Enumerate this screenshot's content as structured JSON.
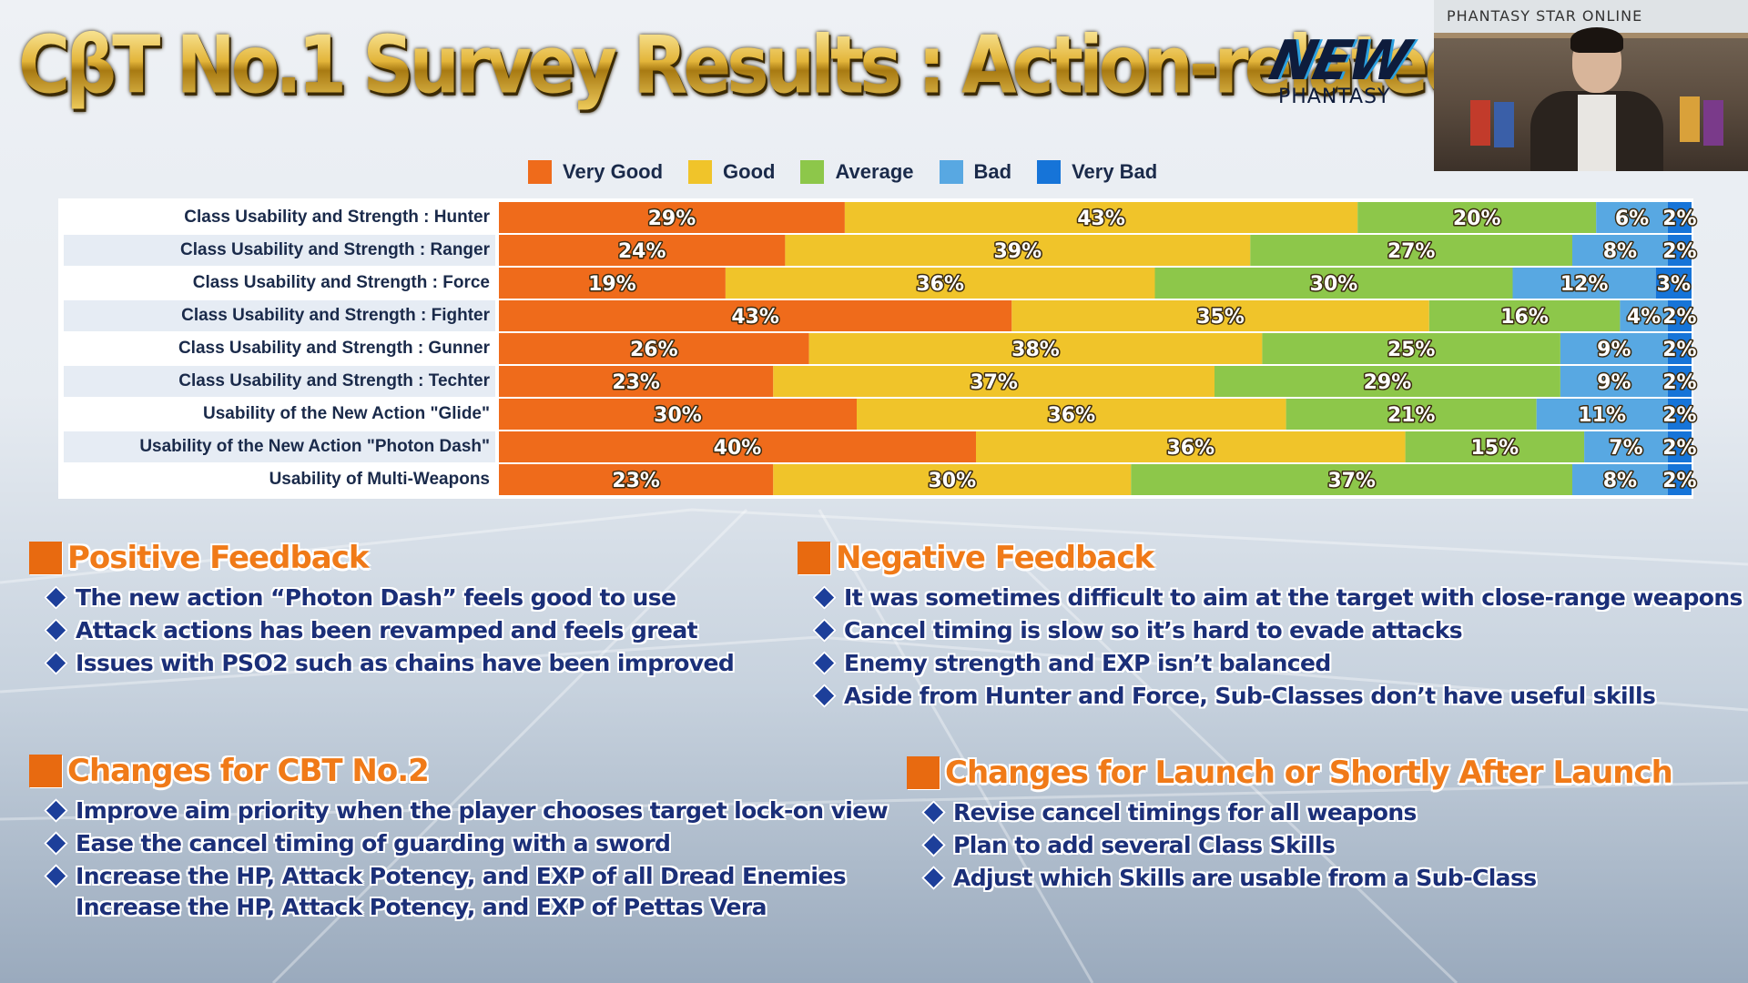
{
  "title": "CβT No.1 Survey Results : Action-related",
  "logo": {
    "main": "NEW",
    "sub": "PHANTASY"
  },
  "webcam": {
    "banner": "PHANTASY STAR ONLINE"
  },
  "colors": {
    "very_good": "#ef6b1b",
    "good": "#f0c42a",
    "average": "#8dc74a",
    "bad": "#58a8e2",
    "very_bad": "#1674d8"
  },
  "chart_data": {
    "type": "bar",
    "orientation": "horizontal",
    "stacked": true,
    "percent": true,
    "legend_position": "top",
    "categories": [
      "Class Usability and Strength : Hunter",
      "Class Usability and Strength : Ranger",
      "Class Usability and Strength : Force",
      "Class Usability and Strength : Fighter",
      "Class Usability and Strength : Gunner",
      "Class Usability and Strength : Techter",
      "Usability of the New Action \"Glide\"",
      "Usability of the New Action \"Photon Dash\"",
      "Usability of Multi-Weapons"
    ],
    "series": [
      {
        "name": "Very Good",
        "color": "#ef6b1b",
        "values": [
          29,
          24,
          19,
          43,
          26,
          23,
          30,
          40,
          23
        ]
      },
      {
        "name": "Good",
        "color": "#f0c42a",
        "values": [
          43,
          39,
          36,
          35,
          38,
          37,
          36,
          36,
          30
        ]
      },
      {
        "name": "Average",
        "color": "#8dc74a",
        "values": [
          20,
          27,
          30,
          16,
          25,
          29,
          21,
          15,
          37
        ]
      },
      {
        "name": "Bad",
        "color": "#58a8e2",
        "values": [
          6,
          8,
          12,
          4,
          9,
          9,
          11,
          7,
          8
        ]
      },
      {
        "name": "Very Bad",
        "color": "#1674d8",
        "values": [
          2,
          2,
          3,
          2,
          2,
          2,
          2,
          2,
          2
        ]
      }
    ],
    "value_suffix": "%"
  },
  "positive": {
    "title": "Positive Feedback",
    "items": [
      "The new action “Photon Dash” feels good to use",
      "Attack actions has been revamped and feels great",
      "Issues with PSO2 such as chains have been improved"
    ]
  },
  "negative": {
    "title": "Negative Feedback",
    "items": [
      "It was sometimes difficult to aim  at the target with close-range weapons",
      "Cancel timing is slow so it’s hard to evade attacks",
      "Enemy strength and EXP isn’t balanced",
      "Aside from Hunter and Force, Sub-Classes don’t have useful skills"
    ]
  },
  "cbt2": {
    "title": "Changes for CBT No.2",
    "items": [
      "Improve aim priority when the player chooses target lock-on view",
      "Ease the cancel timing of guarding with a sword",
      "Increase the HP, Attack Potency, and EXP of all Dread Enemies",
      "Increase the HP, Attack Potency, and EXP of Pettas Vera"
    ]
  },
  "launch": {
    "title": "Changes for Launch or Shortly After Launch",
    "items": [
      "Revise cancel timings for all weapons",
      "Plan to add several Class Skills",
      "Adjust which Skills are usable from a Sub-Class"
    ]
  }
}
